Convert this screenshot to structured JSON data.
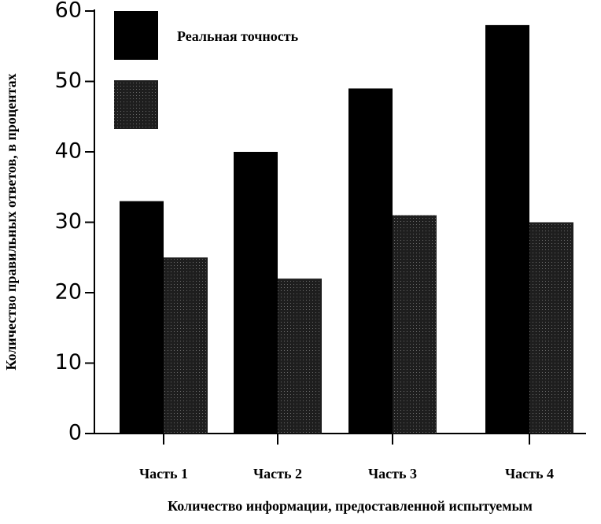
{
  "chart_data": {
    "type": "bar",
    "y_label": "Количество правильных ответов, в процентах",
    "x_label": "Количество информации, предоставленной испытуемым",
    "categories": [
      "Часть 1",
      "Часть 2",
      "Часть 3",
      "Часть 4"
    ],
    "series": [
      {
        "name": "Реальная точность",
        "color": "#000000",
        "values": [
          33,
          40,
          49,
          58
        ]
      },
      {
        "name": null,
        "color": "#2b2b2b",
        "values": [
          25,
          22,
          31,
          30
        ]
      }
    ],
    "ylim": [
      0,
      60
    ],
    "yticks": [
      0,
      10,
      20,
      30,
      40,
      50,
      60
    ]
  }
}
